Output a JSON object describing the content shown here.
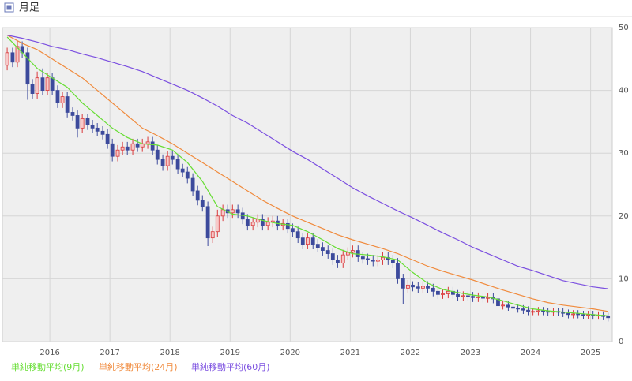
{
  "chart_data": {
    "type": "candlestick",
    "title": "月足",
    "xlim": [
      2015.21,
      2025.36
    ],
    "xticks": [
      2016,
      2017,
      2018,
      2019,
      2020,
      2021,
      2022,
      2023,
      2024,
      2025
    ],
    "ylim": [
      0,
      50
    ],
    "yticks": [
      0,
      10,
      20,
      30,
      40,
      50
    ],
    "grid": true,
    "up_color": "#d9383a",
    "down_color": "#3c4a9c",
    "candles": {
      "x": [
        2015.29,
        2015.38,
        2015.46,
        2015.54,
        2015.63,
        2015.71,
        2015.79,
        2015.88,
        2015.96,
        2016.04,
        2016.13,
        2016.21,
        2016.29,
        2016.38,
        2016.46,
        2016.54,
        2016.63,
        2016.71,
        2016.79,
        2016.88,
        2016.96,
        2017.04,
        2017.13,
        2017.21,
        2017.29,
        2017.38,
        2017.46,
        2017.54,
        2017.63,
        2017.71,
        2017.79,
        2017.88,
        2017.96,
        2018.04,
        2018.13,
        2018.21,
        2018.29,
        2018.38,
        2018.46,
        2018.54,
        2018.63,
        2018.71,
        2018.79,
        2018.88,
        2018.96,
        2019.04,
        2019.13,
        2019.21,
        2019.29,
        2019.38,
        2019.46,
        2019.54,
        2019.63,
        2019.71,
        2019.79,
        2019.88,
        2019.96,
        2020.04,
        2020.13,
        2020.21,
        2020.29,
        2020.38,
        2020.46,
        2020.54,
        2020.63,
        2020.71,
        2020.79,
        2020.88,
        2020.96,
        2021.04,
        2021.13,
        2021.21,
        2021.29,
        2021.38,
        2021.46,
        2021.54,
        2021.63,
        2021.71,
        2021.79,
        2021.88,
        2021.96,
        2022.04,
        2022.13,
        2022.21,
        2022.29,
        2022.38,
        2022.46,
        2022.54,
        2022.63,
        2022.71,
        2022.79,
        2022.88,
        2022.96,
        2023.04,
        2023.13,
        2023.21,
        2023.29,
        2023.38,
        2023.46,
        2023.54,
        2023.63,
        2023.71,
        2023.79,
        2023.88,
        2023.96,
        2024.04,
        2024.13,
        2024.21,
        2024.29,
        2024.38,
        2024.46,
        2024.54,
        2024.63,
        2024.71,
        2024.79,
        2024.88,
        2024.96,
        2025.04,
        2025.13,
        2025.21,
        2025.29
      ],
      "open": [
        44,
        46,
        44.5,
        47,
        46,
        41,
        39.5,
        42,
        40,
        42,
        40,
        38,
        39,
        36.5,
        36,
        34,
        35.5,
        34.5,
        34,
        33.5,
        33,
        31.5,
        29.5,
        30.5,
        31,
        30.5,
        31.5,
        31,
        31.5,
        31.8,
        30.5,
        29,
        28,
        29.5,
        29,
        27.5,
        27,
        26,
        24,
        22.5,
        21.5,
        16.5,
        17.5,
        20,
        21,
        20.5,
        21,
        20.5,
        19.5,
        18.5,
        19,
        19.5,
        18.5,
        19,
        19.2,
        18.5,
        18.8,
        18,
        17.5,
        16.5,
        15.5,
        16.5,
        15.5,
        15,
        14.5,
        14,
        13,
        12.5,
        13.8,
        14.2,
        14.5,
        13.5,
        13.2,
        13,
        12.8,
        13,
        13.4,
        13,
        12.5,
        10,
        8.5,
        9,
        8.7,
        8.5,
        8.8,
        8.5,
        8,
        7.5,
        7.6,
        8,
        7.5,
        7.2,
        7.3,
        7.2,
        7,
        7.1,
        6.9,
        7,
        6.8,
        5.7,
        5.8,
        5.5,
        5.3,
        5.2,
        5,
        4.8,
        4.8,
        4.9,
        4.8,
        4.7,
        4.8,
        4.7,
        4.5,
        4.3,
        4.4,
        4.3,
        4.2,
        4.3,
        4.1,
        4.2,
        4
      ],
      "high": [
        46.8,
        46.8,
        47.8,
        47.8,
        46.8,
        41.8,
        43,
        43.5,
        42.8,
        42.8,
        40.8,
        39.8,
        39.8,
        37.3,
        36.8,
        36.3,
        36.3,
        35.3,
        34.8,
        34.3,
        33.8,
        32.3,
        31.3,
        31.8,
        31.8,
        32.3,
        32.3,
        32.3,
        32.6,
        32.6,
        31.3,
        29.8,
        30.3,
        30.3,
        29.8,
        28.3,
        27.8,
        26.8,
        24.8,
        23.3,
        22.3,
        18.3,
        21,
        21.8,
        21.8,
        21.8,
        21.8,
        21.3,
        20.3,
        19.8,
        20.3,
        20.3,
        19.8,
        20,
        20,
        19.6,
        19.6,
        18.8,
        18.3,
        17.3,
        17.3,
        17.3,
        16.3,
        15.8,
        15.3,
        14.8,
        13.8,
        14.6,
        15,
        15.3,
        15.3,
        14.3,
        14,
        13.8,
        13.8,
        14.2,
        14.2,
        13.8,
        13.3,
        10.8,
        9.8,
        9.6,
        9.5,
        9.6,
        9.6,
        9.2,
        8.7,
        8.3,
        8.7,
        8.7,
        8.2,
        8,
        8,
        7.9,
        7.8,
        7.8,
        7.7,
        7.7,
        7.5,
        6.4,
        6.4,
        6.1,
        5.9,
        5.8,
        5.6,
        5.4,
        5.5,
        5.5,
        5.4,
        5.4,
        5.4,
        5.3,
        5.1,
        5,
        5,
        4.9,
        4.9,
        4.9,
        4.8,
        4.8,
        4.6
      ],
      "low": [
        43.2,
        43.7,
        43.7,
        45.2,
        38.5,
        38.7,
        38.7,
        39.2,
        39.2,
        39.2,
        37.2,
        37.2,
        35.7,
        35.2,
        32.5,
        33.2,
        33.7,
        33.2,
        32.7,
        32.2,
        30.7,
        28.7,
        28.7,
        29.7,
        29.7,
        29.7,
        30.2,
        30.2,
        30.7,
        29.7,
        28.2,
        27.2,
        27.2,
        28.2,
        26.7,
        26.2,
        25.2,
        23.2,
        21.7,
        20.7,
        15.2,
        15.7,
        16.7,
        19.2,
        19.7,
        19.7,
        19.7,
        18.7,
        17.7,
        17.7,
        18.2,
        17.7,
        17.7,
        18.2,
        17.7,
        17.7,
        17.2,
        16.7,
        15.7,
        14.7,
        14.7,
        14.7,
        14.2,
        13.7,
        13.2,
        12.2,
        11.7,
        11.7,
        13,
        13.4,
        12.7,
        12.4,
        12.2,
        12,
        12,
        12.2,
        12.2,
        11.7,
        9.2,
        6,
        7.7,
        8,
        7.7,
        7.7,
        7.7,
        7.2,
        6.8,
        6.8,
        6.9,
        6.8,
        6.5,
        6.5,
        6.5,
        6.3,
        6.3,
        6.2,
        6.2,
        6.1,
        5.1,
        5.1,
        4.9,
        4.7,
        4.6,
        4.4,
        4.2,
        4.2,
        4.2,
        4.2,
        4.1,
        4.1,
        4.1,
        3.9,
        3.7,
        3.7,
        3.7,
        3.6,
        3.6,
        3.5,
        3.5,
        3.4,
        3.2
      ],
      "close": [
        46,
        44.5,
        47,
        46,
        41,
        39.5,
        42,
        40,
        42,
        40,
        38,
        39,
        36.5,
        36,
        34,
        35.5,
        34.5,
        34,
        33.5,
        33,
        31.5,
        29.5,
        30.5,
        31,
        30.5,
        31.5,
        31,
        31.5,
        31.8,
        30.5,
        29,
        28,
        29.5,
        29,
        27.5,
        27,
        26,
        24,
        22.5,
        21.5,
        16.5,
        17.5,
        20,
        21,
        20.5,
        21,
        20.5,
        19.5,
        18.5,
        19,
        19.5,
        18.5,
        19,
        19.2,
        18.5,
        18.8,
        18,
        17.5,
        16.5,
        15.5,
        16.5,
        15.5,
        15,
        14.5,
        14,
        13,
        12.5,
        13.8,
        14.2,
        14.5,
        13.5,
        13.2,
        13,
        12.8,
        13,
        13.4,
        13,
        12.5,
        10,
        8.5,
        9,
        8.7,
        8.5,
        8.8,
        8.5,
        8,
        7.5,
        7.6,
        8,
        7.5,
        7.2,
        7.3,
        7.2,
        7,
        7.1,
        6.9,
        7,
        6.8,
        5.7,
        5.8,
        5.5,
        5.3,
        5.2,
        5,
        4.8,
        4.8,
        4.9,
        4.8,
        4.7,
        4.8,
        4.7,
        4.5,
        4.3,
        4.4,
        4.3,
        4.2,
        4.3,
        4.1,
        4.2,
        4,
        3.8
      ]
    },
    "series_x": [
      2015.29,
      2015.54,
      2015.79,
      2016.04,
      2016.29,
      2016.54,
      2016.79,
      2017.04,
      2017.29,
      2017.54,
      2017.79,
      2018.04,
      2018.29,
      2018.54,
      2018.79,
      2019.04,
      2019.29,
      2019.54,
      2019.79,
      2020.04,
      2020.29,
      2020.54,
      2020.79,
      2021.04,
      2021.29,
      2021.54,
      2021.79,
      2022.04,
      2022.29,
      2022.54,
      2022.79,
      2023.04,
      2023.29,
      2023.54,
      2023.79,
      2024.04,
      2024.29,
      2024.54,
      2024.79,
      2025.04,
      2025.29
    ],
    "series": [
      {
        "name": "単純移動平均(9月)",
        "color": "#66dd33",
        "values": [
          48.5,
          46,
          43.5,
          42,
          40.5,
          38,
          36,
          34,
          32.5,
          31.5,
          31.3,
          30.5,
          28.5,
          25.5,
          21.5,
          20.3,
          20,
          19.3,
          18.8,
          18.5,
          17.5,
          16.2,
          14.8,
          14,
          13.8,
          13.5,
          13,
          11,
          9.3,
          8.3,
          7.8,
          7.4,
          7.1,
          6.5,
          5.8,
          5.2,
          4.9,
          4.7,
          4.5,
          4.3,
          4.1
        ]
      },
      {
        "name": "単純移動平均(24月)",
        "color": "#f08a3c",
        "values": [
          48.8,
          47.5,
          46.5,
          45,
          43.5,
          42,
          40,
          38,
          36,
          34,
          32.8,
          31.5,
          30,
          28.5,
          27,
          25.5,
          24,
          22.5,
          21.2,
          20,
          19,
          18,
          17,
          16.2,
          15.5,
          14.8,
          14,
          13,
          12,
          11.2,
          10.5,
          9.8,
          9,
          8.2,
          7.5,
          6.8,
          6.2,
          5.8,
          5.5,
          5.2,
          4.8
        ]
      },
      {
        "name": "単純移動平均(60月)",
        "color": "#7b4fe0",
        "values": [
          48.8,
          48.3,
          47.7,
          47,
          46.5,
          45.8,
          45.2,
          44.5,
          43.8,
          43,
          42,
          41,
          40,
          38.8,
          37.5,
          36,
          34.8,
          33.3,
          31.8,
          30.3,
          29,
          27.5,
          26,
          24.5,
          23.2,
          22,
          20.8,
          19.7,
          18.5,
          17.3,
          16.2,
          15,
          14,
          13,
          12,
          11.3,
          10.5,
          9.7,
          9.2,
          8.7,
          8.4
        ]
      }
    ]
  }
}
